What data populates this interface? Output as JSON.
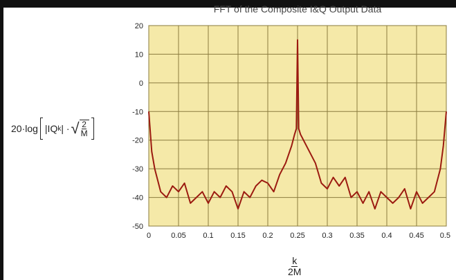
{
  "chart_data": {
    "type": "line",
    "title": "FFT of the Composite I&Q Output Data",
    "ylabel": {
      "prefix": "20·log",
      "inner": "|IQ",
      "inner_sub": "k",
      "inner_close": "| ·",
      "sqrt_num": "2",
      "sqrt_den": "M"
    },
    "xlabel": {
      "num": "k",
      "den": "2M"
    },
    "xlim": [
      0,
      0.5
    ],
    "ylim": [
      -50,
      20
    ],
    "xticks": [
      "0",
      "0.05",
      "0.1",
      "0.15",
      "0.2",
      "0.25",
      "0.3",
      "0.35",
      "0.4",
      "0.45",
      "0.5"
    ],
    "yticks": [
      "20",
      "10",
      "0",
      "-10",
      "-20",
      "-30",
      "-40",
      "-50"
    ],
    "grid": true,
    "background_color": "#f5e9a8",
    "line_color": "#9b1a10",
    "series": [
      {
        "x": [
          0,
          0.005,
          0.01,
          0.02,
          0.03,
          0.04,
          0.05,
          0.06,
          0.07,
          0.08,
          0.09,
          0.1,
          0.11,
          0.12,
          0.13,
          0.14,
          0.15,
          0.16,
          0.17,
          0.18,
          0.19,
          0.2,
          0.21,
          0.22,
          0.23,
          0.24,
          0.245,
          0.248,
          0.25,
          0.252,
          0.255,
          0.26,
          0.27,
          0.28,
          0.29,
          0.3,
          0.31,
          0.32,
          0.33,
          0.34,
          0.35,
          0.36,
          0.37,
          0.38,
          0.39,
          0.4,
          0.41,
          0.42,
          0.43,
          0.44,
          0.45,
          0.46,
          0.47,
          0.48,
          0.49,
          0.495,
          0.5
        ],
        "y": [
          -10,
          -24,
          -30,
          -38,
          -40,
          -36,
          -38,
          -35,
          -42,
          -40,
          -38,
          -42,
          -38,
          -40,
          -36,
          -38,
          -44,
          -38,
          -40,
          -36,
          -34,
          -35,
          -38,
          -32,
          -28,
          -22,
          -18,
          -16,
          15,
          -16,
          -18,
          -20,
          -24,
          -28,
          -35,
          -37,
          -33,
          -36,
          -33,
          -40,
          -38,
          -42,
          -38,
          -44,
          -38,
          -40,
          -42,
          -40,
          -37,
          -44,
          -38,
          -42,
          -40,
          -38,
          -30,
          -22,
          -10
        ]
      }
    ]
  }
}
